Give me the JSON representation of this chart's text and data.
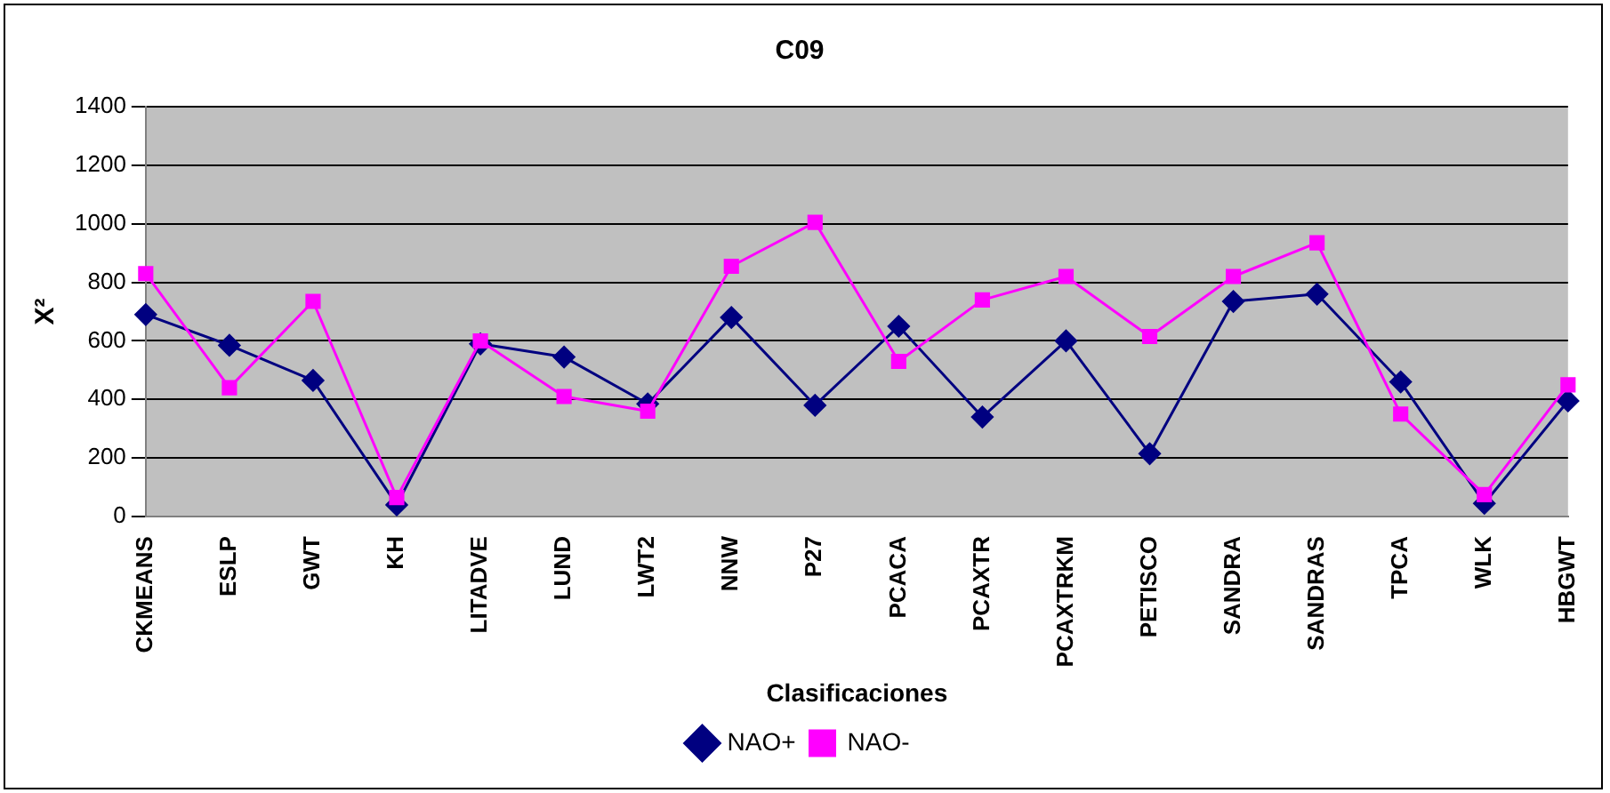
{
  "chart_data": {
    "type": "line",
    "title": "C09",
    "xlabel": "Clasificaciones",
    "ylabel": "X²",
    "categories": [
      "CKMEANS",
      "ESLP",
      "GWT",
      "KH",
      "LITADVE",
      "LUND",
      "LWT2",
      "NNW",
      "P27",
      "PCACA",
      "PCAXTR",
      "PCAXTRKM",
      "PETISCO",
      "SANDRA",
      "SANDRAS",
      "TPCA",
      "WLK",
      "HBGWT"
    ],
    "series": [
      {
        "name": "NAO+",
        "color": "#000080",
        "marker": "diamond",
        "values": [
          690,
          585,
          465,
          40,
          590,
          545,
          385,
          680,
          380,
          650,
          340,
          600,
          215,
          735,
          760,
          460,
          45,
          395
        ]
      },
      {
        "name": "NAO-",
        "color": "#ff00ff",
        "marker": "square",
        "values": [
          830,
          440,
          735,
          65,
          600,
          410,
          360,
          855,
          1005,
          530,
          740,
          820,
          615,
          820,
          935,
          350,
          75,
          450
        ]
      }
    ],
    "ylim": [
      0,
      1400
    ],
    "yticks": [
      0,
      200,
      400,
      600,
      800,
      1000,
      1200,
      1400
    ],
    "grid": "y",
    "legend": "bottom"
  }
}
